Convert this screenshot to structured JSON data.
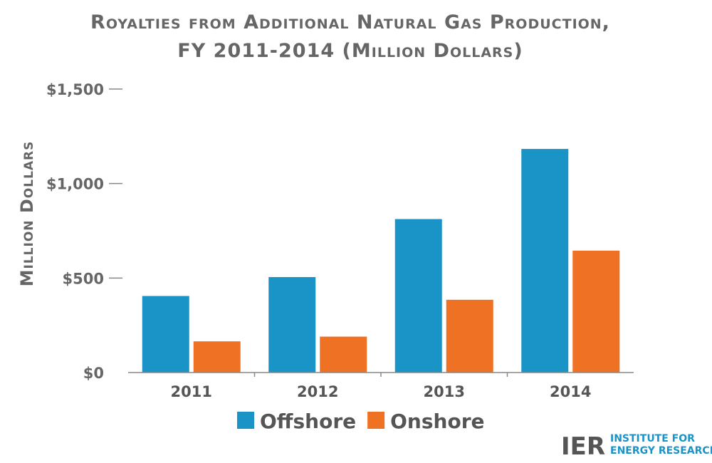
{
  "chart_data": {
    "type": "bar",
    "title": "Royalties from Additional Natural Gas Production,",
    "subtitle": "FY 2011-2014 (Million Dollars)",
    "ylabel": "Million Dollars",
    "xlabel": "",
    "categories": [
      "2011",
      "2012",
      "2013",
      "2014"
    ],
    "series": [
      {
        "name": "Offshore",
        "color": "#1a93c6",
        "values": [
          405,
          505,
          812,
          1183
        ]
      },
      {
        "name": "Onshore",
        "color": "#ef7124",
        "values": [
          165,
          190,
          385,
          645
        ]
      }
    ],
    "ylim": [
      0,
      1500
    ],
    "yticks": [
      0,
      500,
      1000,
      1500
    ],
    "ytick_labels": [
      "$0",
      "$500",
      "$1,000",
      "$1,500"
    ],
    "grid": false,
    "legend_position": "bottom-center"
  },
  "logo": {
    "mark": "IER",
    "line1": "INSTITUTE FOR",
    "line2": "ENERGY RESEARCH"
  }
}
